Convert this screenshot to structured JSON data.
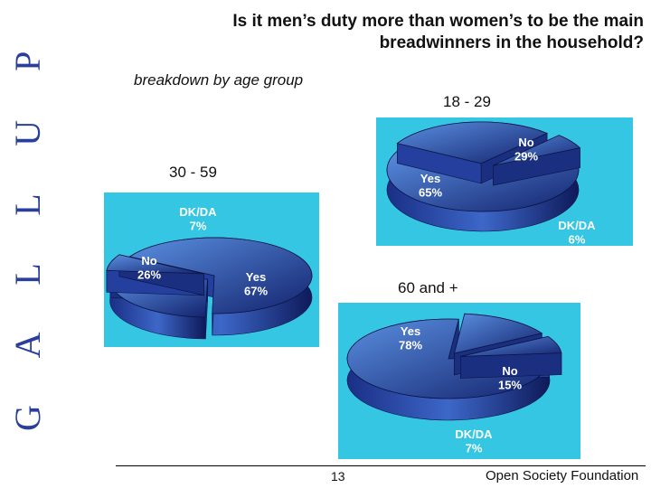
{
  "slide": {
    "title_line1": "Is it men’s duty more than women’s to be the main",
    "title_line2": "breadwinners in the household?",
    "subtitle": "breakdown by age group",
    "page_number": "13",
    "organization": "Open Society Foundation",
    "side_logo": "G A L L U P"
  },
  "colors": {
    "panel": "#35c6e4",
    "pie_light": "#5a8fe0",
    "pie_dark": "#13236e",
    "logo": "#2a3f9a"
  },
  "chart_data": [
    {
      "type": "pie",
      "group": "18 - 29",
      "categories": [
        "Yes",
        "No",
        "DK/DA"
      ],
      "values": [
        65,
        29,
        6
      ],
      "labels": [
        "Yes\n65%",
        "No\n29%",
        "DK/DA\n6%"
      ]
    },
    {
      "type": "pie",
      "group": "30 - 59",
      "categories": [
        "Yes",
        "No",
        "DK/DA"
      ],
      "values": [
        67,
        26,
        7
      ],
      "labels": [
        "Yes\n67%",
        "No\n26%",
        "DK/DA\n7%"
      ]
    },
    {
      "type": "pie",
      "group": "60 and +",
      "categories": [
        "Yes",
        "No",
        "DK/DA"
      ],
      "values": [
        78,
        15,
        7
      ],
      "labels": [
        "Yes\n78%",
        "No\n15%",
        "DK/DA\n7%"
      ]
    }
  ]
}
